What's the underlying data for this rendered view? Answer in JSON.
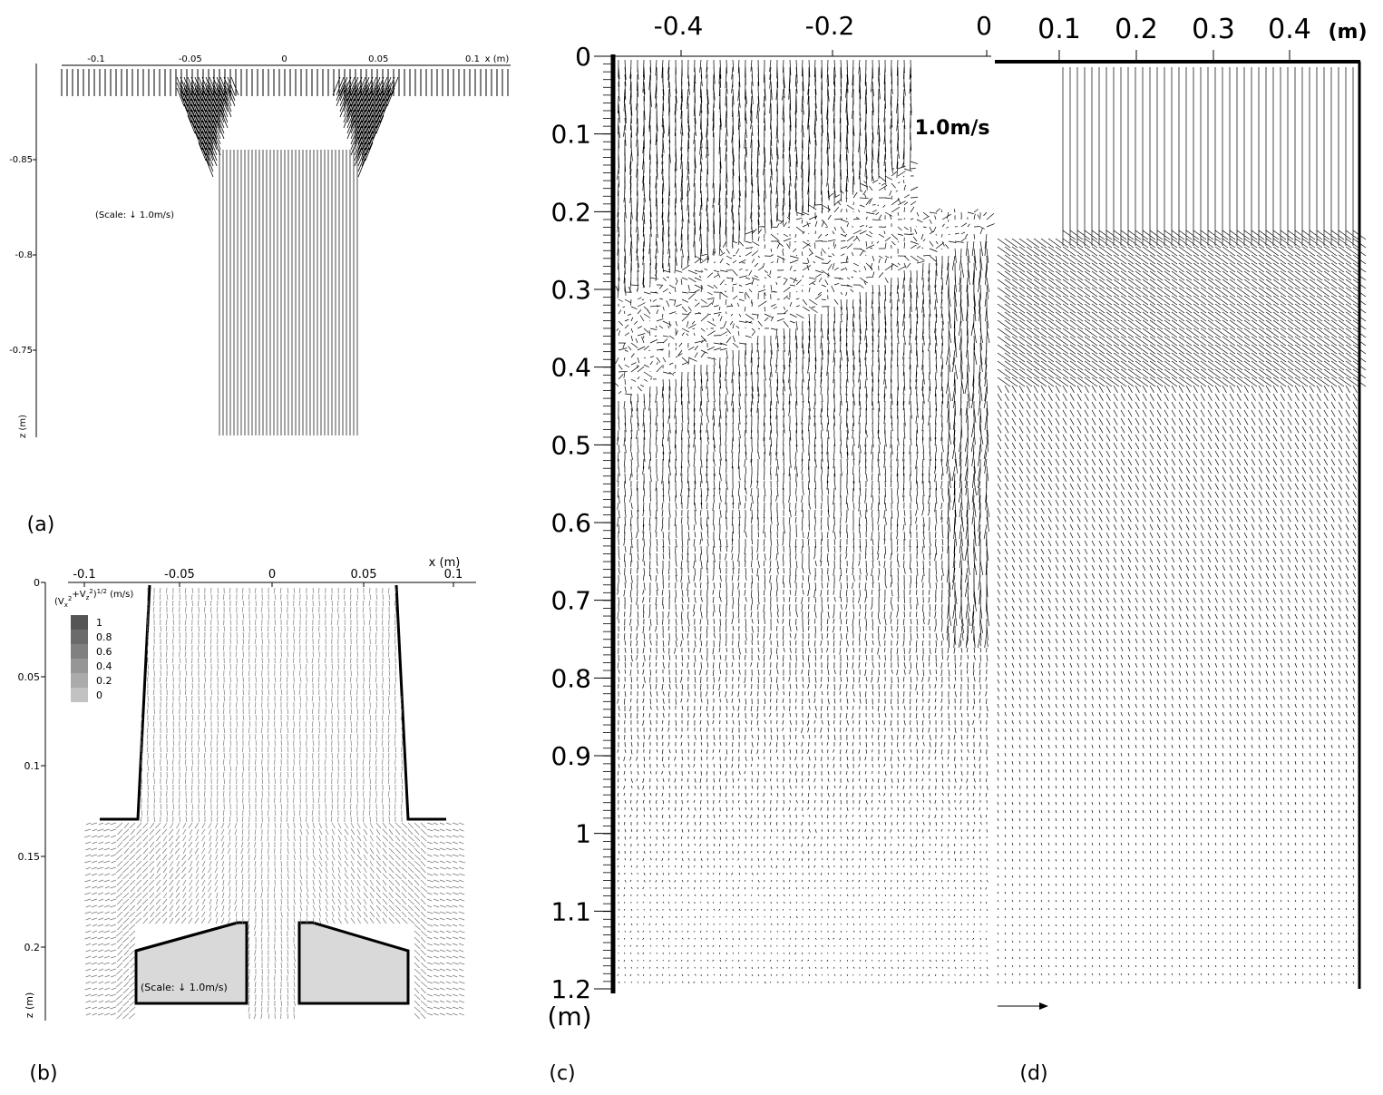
{
  "panels": [
    {
      "label": "(a)",
      "x_ticks": [
        "-0.1",
        "-0.05",
        "0",
        "0.05",
        "0.1"
      ],
      "x_axis_label": "x (m)",
      "z_ticks": [
        "-0.85",
        "-0.8",
        "-0.75"
      ],
      "z_axis_label": "z (m)",
      "scale_note": "(Scale: ↓ 1.0m/s)"
    },
    {
      "label": "(b)",
      "x_ticks": [
        "-0.1",
        "-0.05",
        "0",
        "0.05",
        "0.1"
      ],
      "x_axis_label": "x (m)",
      "z_ticks": [
        "0",
        "0.05",
        "0.1",
        "0.15",
        "0.2"
      ],
      "z_axis_label": "z (m)",
      "legend_title": [
        "(V",
        "x",
        "2",
        "+V",
        "z",
        "2",
        ")",
        "1/2",
        " (m/s)"
      ],
      "legend_levels": [
        "1",
        "0.8",
        "0.6",
        "0.4",
        "0.2",
        "0"
      ],
      "scale_note": "(Scale: ↓ 1.0m/s)"
    },
    {
      "label": "(c)",
      "x_ticks": [
        "-0.4",
        "-0.2",
        "0"
      ],
      "z_ticks": [
        "0",
        "0.1",
        "0.2",
        "0.3",
        "0.4",
        "0.5",
        "0.6",
        "0.7",
        "0.8",
        "0.9",
        "1",
        "1.1",
        "1.2"
      ],
      "z_axis_label": "(m)",
      "scale_note": "1.0m/s"
    },
    {
      "label": "(d)",
      "x_ticks": [
        "0.1",
        "0.2",
        "0.3",
        "0.4"
      ],
      "x_axis_label": "(m)"
    }
  ]
}
